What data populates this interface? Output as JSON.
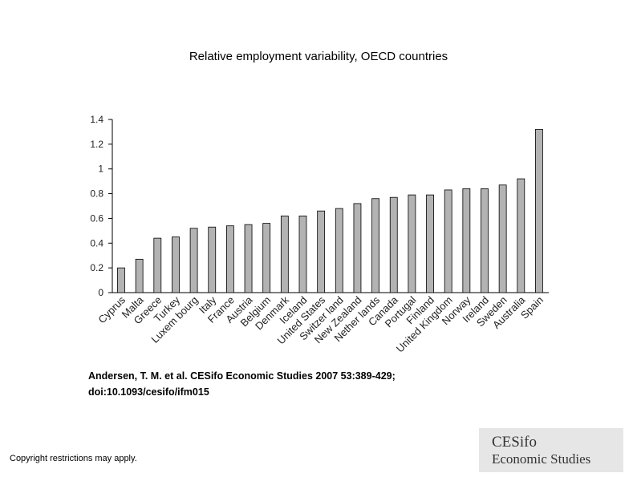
{
  "slide": {
    "citation_line1": "Andersen, T. M. et al. CESifo Economic Studies 2007 53:389-429;",
    "citation_line2": "doi:10.1093/cesifo/ifm015",
    "copyright": "Copyright restrictions may apply.",
    "logo_line1": "CESifo",
    "logo_line2": "Economic Studies"
  },
  "chart_data": {
    "type": "bar",
    "title": "Relative employment variability, OECD countries",
    "xlabel": "",
    "ylabel": "",
    "ylim": [
      0,
      1.4
    ],
    "yticks": [
      0,
      0.2,
      0.4,
      0.6,
      0.8,
      1,
      1.2,
      1.4
    ],
    "ytick_labels": [
      "0",
      "0.2",
      "0.4",
      "0.6",
      "0.8",
      "1",
      "1.2",
      "1.4"
    ],
    "categories": [
      "Cyprus",
      "Malta",
      "Greece",
      "Turkey",
      "Luxem bourg",
      "Italy",
      "France",
      "Austria",
      "Belgium",
      "Denmark",
      "Iceland",
      "United States",
      "Switzer land",
      "New Zealand",
      "Nether lands",
      "Canada",
      "Portugal",
      "Finland",
      "United Kingdom",
      "Norway",
      "Ireland",
      "Sweden",
      "Australia",
      "Spain"
    ],
    "values": [
      0.2,
      0.27,
      0.44,
      0.45,
      0.52,
      0.53,
      0.54,
      0.55,
      0.56,
      0.62,
      0.62,
      0.66,
      0.68,
      0.72,
      0.76,
      0.77,
      0.79,
      0.79,
      0.83,
      0.84,
      0.84,
      0.87,
      0.92,
      1.32
    ],
    "grid": false,
    "legend": "none",
    "bar_color": "#b3b3b3"
  }
}
